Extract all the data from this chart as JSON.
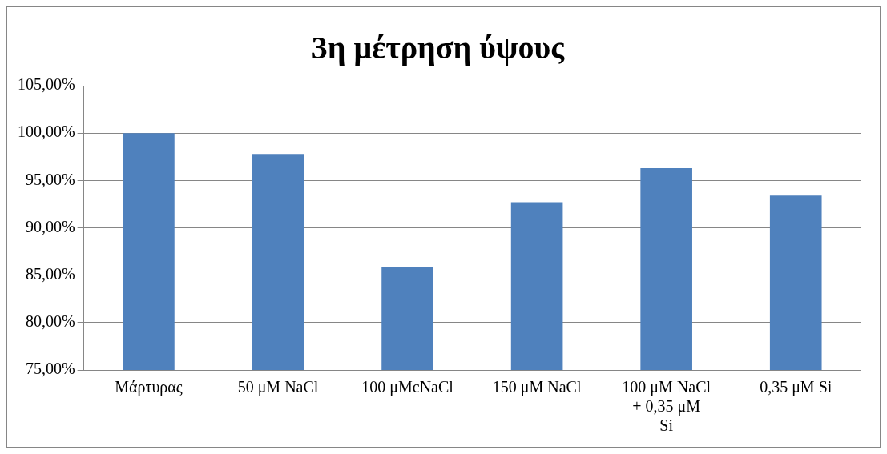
{
  "chart_data": {
    "type": "bar",
    "title": "3η μέτρηση ύψους",
    "categories": [
      "Μάρτυρας",
      "50 μM NaCl",
      "100 μMcNaCl",
      "150 μM NaCl",
      "100 μM NaCl + 0,35 μM Si",
      "0,35 μM Si"
    ],
    "values": [
      100,
      97.8,
      85.9,
      92.7,
      96.3,
      93.4
    ],
    "color": "#4f81bd",
    "ylim": [
      75,
      105
    ],
    "yticks": [
      {
        "value": 75,
        "label": "75,00%"
      },
      {
        "value": 80,
        "label": "80,00%"
      },
      {
        "value": 85,
        "label": "85,00%"
      },
      {
        "value": 90,
        "label": "90,00%"
      },
      {
        "value": 95,
        "label": "95,00%"
      },
      {
        "value": 100,
        "label": "100,00%"
      },
      {
        "value": 105,
        "label": "105,00%"
      }
    ],
    "grid": "y",
    "legend": false
  }
}
